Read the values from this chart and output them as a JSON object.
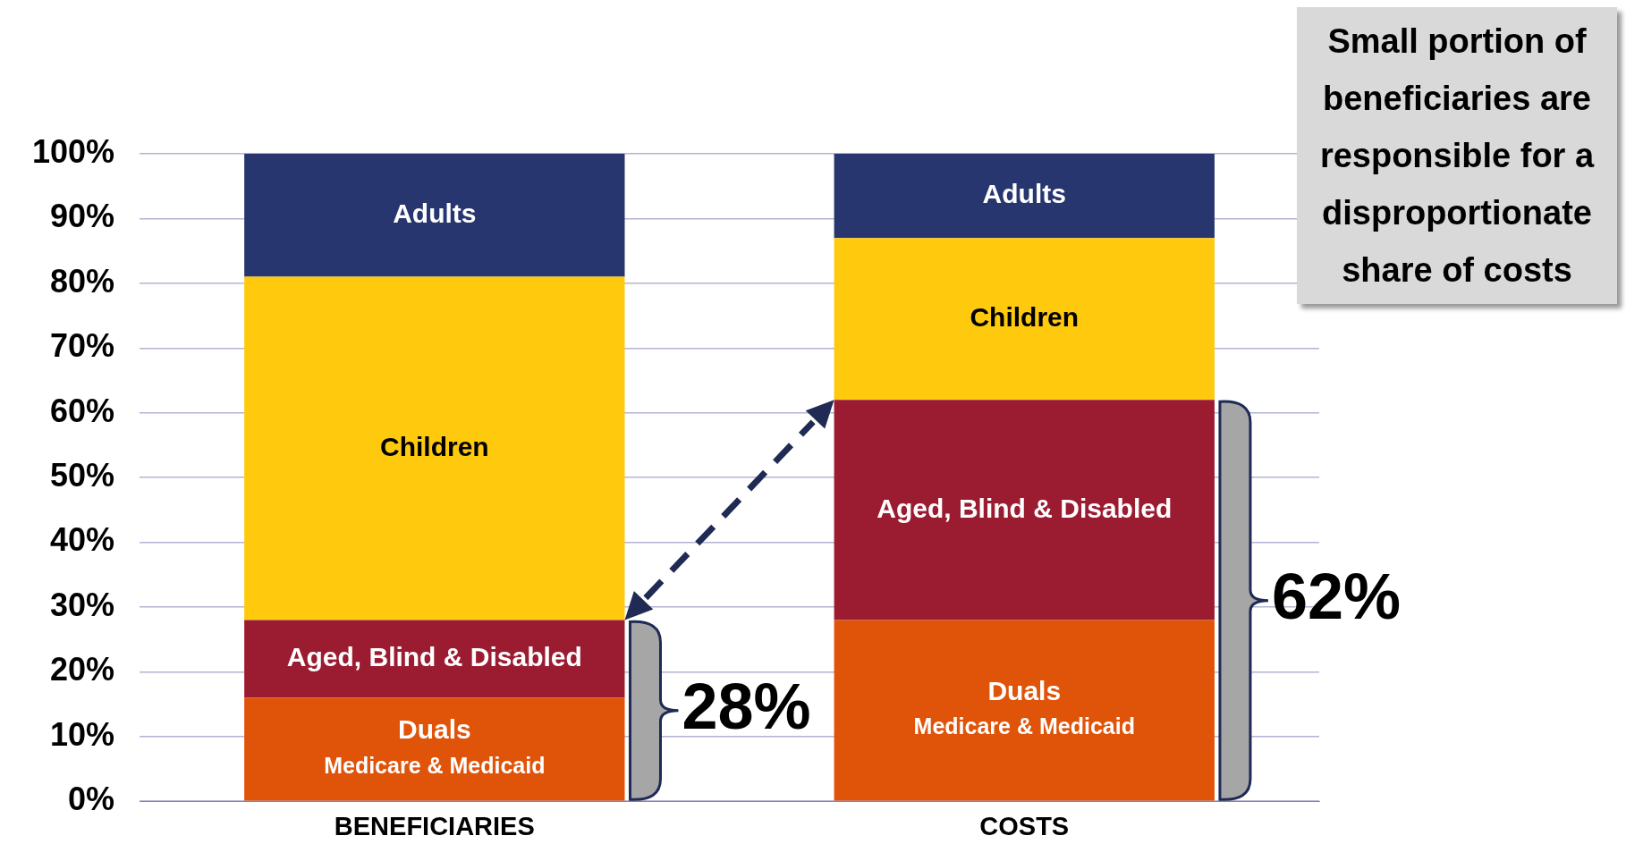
{
  "chart_data": {
    "type": "bar",
    "stacked": true,
    "categories": [
      "BENEFICIARIES",
      "COSTS"
    ],
    "series": [
      {
        "name": "Duals\nMedicare & Medicaid",
        "color": "#e0540a",
        "values": [
          16,
          28
        ]
      },
      {
        "name": "Aged, Blind & Disabled",
        "color": "#9b1c31",
        "values": [
          12,
          34
        ]
      },
      {
        "name": "Children",
        "color": "#ffc90e",
        "values": [
          53,
          25
        ]
      },
      {
        "name": "Adults",
        "color": "#27366f",
        "values": [
          19,
          13
        ]
      }
    ],
    "ylim": [
      0,
      100
    ],
    "yticks": [
      {
        "value": 0,
        "label": "0%"
      },
      {
        "value": 10,
        "label": "10%"
      },
      {
        "value": 20,
        "label": "20%"
      },
      {
        "value": 30,
        "label": "30%"
      },
      {
        "value": 40,
        "label": "40%"
      },
      {
        "value": 50,
        "label": "50%"
      },
      {
        "value": 60,
        "label": "60%"
      },
      {
        "value": 70,
        "label": "70%"
      },
      {
        "value": 80,
        "label": "80%"
      },
      {
        "value": 90,
        "label": "90%"
      },
      {
        "value": 100,
        "label": "100%"
      }
    ],
    "grid": "y",
    "legend": false,
    "annotations": [
      "Small portion of beneficiaries are responsible for a disproportionate share of costs",
      "28%",
      "62%"
    ]
  }
}
